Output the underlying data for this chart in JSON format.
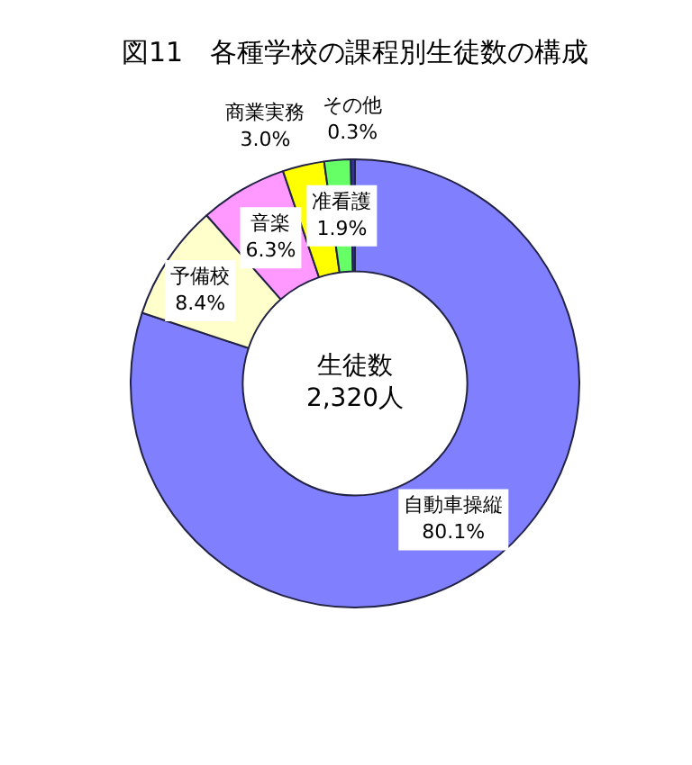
{
  "chart_data": {
    "type": "donut",
    "title": "図11　各種学校の課程別生徒数の構成",
    "categories": [
      "自動車操縦",
      "予備校",
      "音楽",
      "商業実務",
      "准看護",
      "その他"
    ],
    "values": [
      80.1,
      8.4,
      6.3,
      3.0,
      1.9,
      0.3
    ],
    "value_labels": [
      "80.1%",
      "8.4%",
      "6.3%",
      "3.0%",
      "1.9%",
      "0.3%"
    ],
    "colors": [
      "#8080ff",
      "#ffffcc",
      "#ff99ff",
      "#ffff00",
      "#66ff66",
      "#333399"
    ],
    "annotations": [
      "生徒数\n2,320人"
    ],
    "legend": false
  }
}
